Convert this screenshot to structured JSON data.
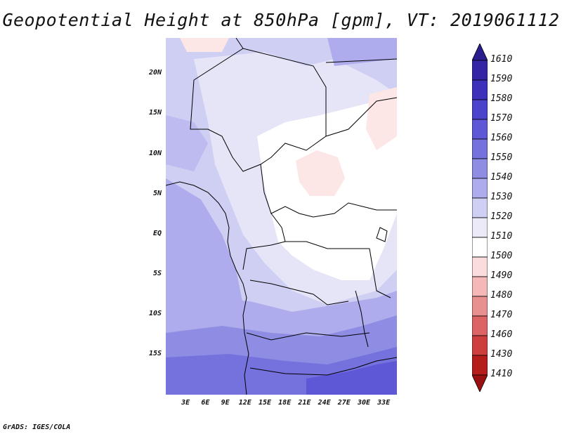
{
  "title": "Geopotential Height at 850hPa [gpm], VT: 2019061112",
  "footer": "GrADS: IGES/COLA",
  "map": {
    "lat_labels": [
      "20N",
      "15N",
      "10N",
      "5N",
      "EQ",
      "5S",
      "10S",
      "15S"
    ],
    "lat_values": [
      20,
      15,
      10,
      5,
      0,
      -5,
      -10,
      -15
    ],
    "lon_labels": [
      "3E",
      "6E",
      "9E",
      "12E",
      "15E",
      "18E",
      "21E",
      "24E",
      "27E",
      "30E",
      "33E"
    ],
    "lon_values": [
      3,
      6,
      9,
      12,
      15,
      18,
      21,
      24,
      27,
      30,
      33
    ],
    "lon_range": [
      0,
      35
    ],
    "lat_range": [
      -20,
      24.5
    ]
  },
  "colorbar": {
    "levels": [
      "1610",
      "1590",
      "1580",
      "1570",
      "1560",
      "1550",
      "1540",
      "1530",
      "1520",
      "1510",
      "1500",
      "1490",
      "1480",
      "1470",
      "1460",
      "1430",
      "1410"
    ],
    "colors": [
      "#2a1d8e",
      "#3326a6",
      "#3d31bc",
      "#4b43cc",
      "#5f58d6",
      "#7571dd",
      "#8f8ce4",
      "#aeacec",
      "#cfcef3",
      "#eceaf8",
      "#ffffff",
      "#fbdcdc",
      "#f4b8b8",
      "#e88f8f",
      "#dc6464",
      "#cf3e3e",
      "#b51d1d",
      "#9a0f0f"
    ]
  },
  "field_colors": {
    "h1540": "#aeacec",
    "h1530": "#cfcef3",
    "h1520": "#e6e5f8",
    "h1510": "#ffffff",
    "h1500": "#fce6e6",
    "h1550": "#8f8ce4",
    "h1560": "#7571dd",
    "h1570": "#5f58d6"
  }
}
